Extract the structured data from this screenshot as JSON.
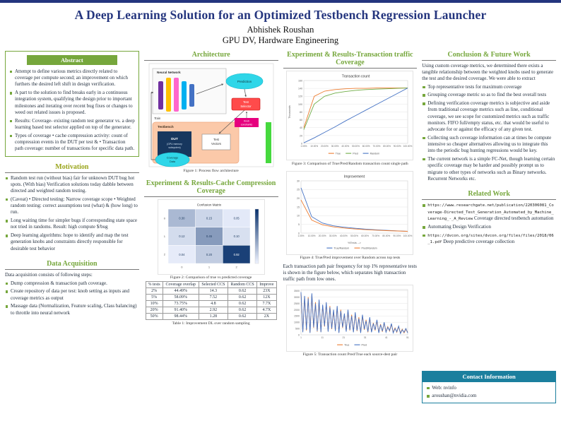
{
  "colors": {
    "accent_green": "#76a73c",
    "olive": "#9aa51c",
    "navy": "#24357e",
    "teal": "#1b7f9e"
  },
  "header": {
    "title": "A Deep Learning Solution for an Optimized Testbench Regression Launcher",
    "author": "Abhishek Roushan",
    "affiliation": "GPU DV, Hardware Engineering"
  },
  "abstract": {
    "heading": "Abstract",
    "items": [
      "Attempt to define various metrics directly related to coverage per compute second; an improvement on which furthers the desired left shift in design verification.",
      "A part to the solution to find breaks early in a continuous integration system, qualifying the design prior to important milestones and iterating over recent bug fixes or changes to weed out related issues is proposed.",
      "Results: Coverage- existing random test generator vs. a deep learning based test selector applied on top of the generator.",
      "Types of coverage • cache compression activity: count of compression events in the DUT per test & • Transaction path coverage: number of transactions for specific data path."
    ]
  },
  "motivation": {
    "heading": "Motivation",
    "items": [
      "Random test run (without bias) fair for unknown DUT bug hot spots. (With bias) Verification solutions today dabble between directed and weighted random testing.",
      "(Caveat) • Directed testing: Narrow coverage scope • Weighted random testing: correct assumptions test (what) & (how long) to run.",
      "Long waiting time for simpler bugs if corresponding state space not tried in randoms. Result: high compute $/bug",
      "Deep learning algorithms: hope to identify and map the test generation knobs and constraints directly responsible for desirable test behavior"
    ]
  },
  "data_acquisition": {
    "heading": "Data Acquisition",
    "intro": "Data acquisition consists of following steps:",
    "items": [
      "Dump compression & transaction path coverage.",
      "Create repository of data per test: knob setting as inputs and coverage metrics as output",
      "Massage data (Normalization, Feature scaling, Class balancing) to throttle into neural network"
    ]
  },
  "architecture": {
    "heading": "Architecture",
    "caption": "Figure 1: Process flow architecture",
    "diagram": {
      "neural_network": "Neural Network",
      "prediction": "Prediction",
      "test_selector_1": "Test",
      "test_selector_2": "Selector",
      "knob_1": "Knob",
      "knob_2": "constraints",
      "testbench": "Testbench",
      "dut": "DUT",
      "dut_sub_1": "(GPU memory",
      "dut_sub_2": "subsystem)",
      "test_vectors_1": "Test",
      "test_vectors_2": "Vectors",
      "coverage_1": "Coverage",
      "coverage_2": "Data",
      "train": "Train"
    }
  },
  "cache_results": {
    "heading": "Experiment & Results-Cache Compression Coverage",
    "figure_caption": "Figure 2: Comparison of true vs predicted coverage",
    "table_caption": "Table 1: Improvement DL over random sampling",
    "table": {
      "headers": [
        "% tests",
        "Coverage overlap",
        "Selected CCS",
        "Random CCS",
        "Improve"
      ],
      "rows": [
        [
          "2%",
          "44.49%",
          "14.3",
          "0.62",
          "23X"
        ],
        [
          "5%",
          "58.09%",
          "7.52",
          "0.62",
          "12X"
        ],
        [
          "10%",
          "73.75%",
          "4.8",
          "0.62",
          "7.7X"
        ],
        [
          "20%",
          "91.40%",
          "2.92",
          "0.62",
          "4.7X"
        ],
        [
          "50%",
          "98.44%",
          "1.28",
          "0.62",
          "2X"
        ]
      ]
    }
  },
  "transaction_results": {
    "heading": "Experiment & Results-Transaction traffic Coverage",
    "fig3_caption": "Figure 3: Comparison of True/Pred/Random transaction count single path",
    "fig4_caption": "Figure 4: True/Pred improvement over Random across top tests",
    "paragraph": "Each transaction path pair frequency for top 1% representative tests is shown in the figure below, which separates high transaction traffic path from low ones.",
    "fig5_caption": "Figure 5: Transaction count Pred/True each source-dest pair"
  },
  "conclusion": {
    "heading": "Conclusion & Future Work",
    "intro": "Using custom coverage metrics, we determined there exists a tangible relationship between the weighted knobs used to generate the test and the desired coverage. We were able to extract",
    "items": [
      "Top representative tests for maximum coverage",
      "Grouping coverage metric so as to find the best overall tests",
      "Defining verification coverage metrics is subjective and aside from traditional coverage metrics such as line, conditional coverage, we see scope for customized metrics such as traffic monitors. FIFO full/empty status, etc. that would be useful to advocate for or against the efficacy of any given test.",
      "Collecting such coverage information can at times be compute intensive so cheaper alternatives allowing us to integrate this into the periodic bug hunting regressions would be key.",
      "The current network is a simple FC-Net, though learning certain specific coverage may be harder and possibly prompt us to migrate to other types of networks such as Binary networks. Recurrent Networks etc."
    ]
  },
  "related_work": {
    "heading": "Related Work",
    "items": [
      {
        "url": "https://www.researchgate.net/publication/220306081_Coverage-Directed_Test_Generation_Automated_by_Machine_Learning_-_A_Review",
        "text": "Coverage directed testbench automation"
      },
      {
        "url": "",
        "text": "Automating Design Verification"
      },
      {
        "url": "https://dvcon.org/sites/dvcon.org/files/files/2018/06_1.pdf",
        "text": "Deep predictive coverage collection"
      }
    ]
  },
  "contact": {
    "heading": "Contact Information",
    "items": [
      "Web: nvinfo",
      "aroushan@nvidia.com"
    ]
  },
  "chart_data": [
    {
      "type": "heatmap",
      "title": "Confusion Matrix",
      "rows": [
        "0",
        "1",
        "2"
      ],
      "cols": [
        "0",
        "1",
        "2"
      ],
      "values": [
        [
          0.3,
          0.15,
          0.05
        ],
        [
          0.12,
          0.45,
          0.1
        ],
        [
          0.04,
          0.2,
          0.92
        ]
      ]
    },
    {
      "type": "line",
      "title": "Transaction count",
      "ylabel": "Thousands",
      "x": [
        "1.00%",
        "10.00%",
        "20.00%",
        "30.00%",
        "40.00%",
        "50.00%",
        "60.00%",
        "70.00%",
        "80.00%",
        "90.00%",
        "100.00%"
      ],
      "ylim": [
        0,
        160
      ],
      "yticks": [
        0,
        20,
        40,
        60,
        80,
        100,
        120,
        140,
        160
      ],
      "series": [
        {
          "name": "True",
          "color": "#ed7d31",
          "values": [
            40,
            120,
            133,
            137,
            139,
            140,
            140,
            141,
            141,
            141,
            141
          ]
        },
        {
          "name": "Pred",
          "color": "#70ad47",
          "values": [
            35,
            100,
            120,
            128,
            132,
            135,
            137,
            138,
            139,
            140,
            141
          ]
        },
        {
          "name": "Random",
          "color": "#4472c4",
          "values": [
            1.4,
            14,
            28,
            42,
            57,
            71,
            85,
            99,
            113,
            127,
            141
          ]
        }
      ]
    },
    {
      "type": "line",
      "title": "Improvement",
      "xlabel": "%Tests -->",
      "x": [
        "1.00%",
        "10.00%",
        "20.00%",
        "30.00%",
        "40.00%",
        "50.00%",
        "60.00%",
        "70.00%",
        "80.00%",
        "90.00%",
        "100.00%"
      ],
      "ylim": [
        0,
        30
      ],
      "yticks": [
        0,
        5,
        10,
        15,
        20,
        25,
        30
      ],
      "series": [
        {
          "name": "True/Random",
          "color": "#4472c4",
          "values": [
            26,
            9.5,
            5.8,
            4.2,
            3.4,
            2.8,
            2.3,
            1.9,
            1.6,
            1.3,
            1
          ]
        },
        {
          "name": "Pred/Random",
          "color": "#ed7d31",
          "values": [
            19,
            7.5,
            4.8,
            3.6,
            2.9,
            2.4,
            2,
            1.7,
            1.4,
            1.2,
            1
          ]
        }
      ]
    },
    {
      "type": "line",
      "title": "",
      "x": [
        "1",
        "11",
        "21",
        "31",
        "41",
        "51"
      ],
      "ylim": [
        0,
        3600
      ],
      "yticks": [
        0,
        500,
        1000,
        1500,
        2000,
        2500,
        3000,
        3500
      ],
      "series": [
        {
          "name": "True",
          "color": "#ed7d31",
          "values": [
            3300,
            250,
            3000,
            350,
            3000,
            200,
            3200,
            550,
            2600,
            250,
            2700,
            250,
            2300,
            650,
            2500,
            300,
            2300,
            450,
            1900,
            350,
            2200,
            200,
            2000,
            550,
            1600,
            300,
            1900,
            350,
            1600,
            250,
            1700,
            300,
            1400,
            200,
            1500,
            400,
            1200,
            200,
            1300,
            250,
            950,
            350,
            1100,
            200,
            850,
            250,
            950,
            250,
            650,
            300,
            850,
            200,
            550,
            200,
            650,
            150,
            450,
            150,
            450,
            200
          ]
        },
        {
          "name": "Pred",
          "color": "#4472c4",
          "values": [
            3400,
            200,
            3100,
            400,
            2900,
            150,
            3300,
            600,
            2500,
            300,
            2800,
            200,
            2400,
            700,
            2600,
            250,
            2200,
            500,
            2000,
            300,
            2300,
            150,
            1900,
            600,
            1700,
            250,
            2000,
            400,
            1500,
            200,
            1800,
            350,
            1300,
            150,
            1600,
            450,
            1100,
            250,
            1400,
            200,
            900,
            400,
            1200,
            150,
            800,
            300,
            1000,
            200,
            600,
            350,
            900,
            150,
            500,
            250,
            700,
            100,
            400,
            200,
            500,
            150
          ]
        }
      ]
    }
  ]
}
